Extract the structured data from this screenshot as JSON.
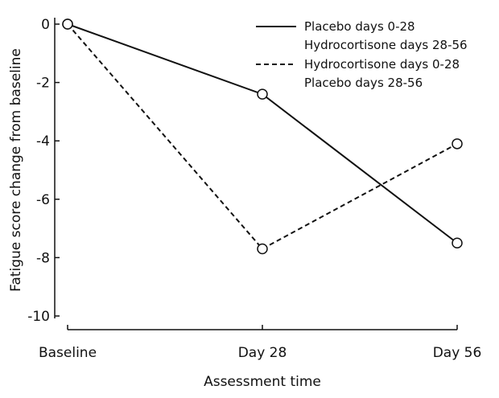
{
  "chart_data": {
    "type": "line",
    "title": "",
    "xlabel": "Assessment time",
    "ylabel": "Fatigue score change from baseline",
    "categories": [
      "Baseline",
      "Day 28",
      "Day 56"
    ],
    "ylim": [
      -10,
      0
    ],
    "yticks": [
      0,
      -2,
      -4,
      -6,
      -8,
      -10
    ],
    "ytick_labels": [
      "0",
      "-2",
      "-4",
      "-6",
      "-8",
      "-10"
    ],
    "grid": false,
    "legend_position": "top-right",
    "series": [
      {
        "name_line1": "Placebo days 0-28",
        "name_line2": "Hydrocortisone days 28-56",
        "style": "solid",
        "color": "#111111",
        "marker": "open-circle",
        "values": [
          0,
          -2.4,
          -7.5
        ]
      },
      {
        "name_line1": "Hydrocortisone days 0-28",
        "name_line2": "Placebo days 28-56",
        "style": "dashed",
        "color": "#111111",
        "marker": "open-circle",
        "values": [
          0,
          -7.7,
          -4.1
        ]
      }
    ]
  }
}
